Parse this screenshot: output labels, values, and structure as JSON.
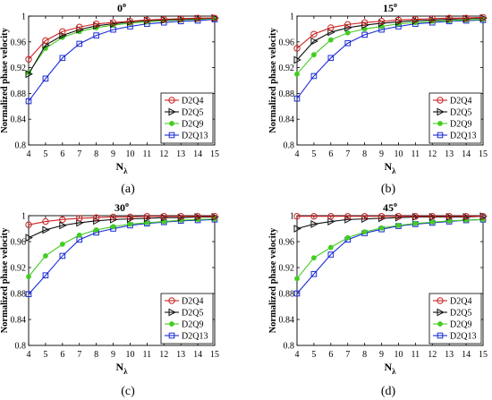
{
  "chart_data": [
    {
      "type": "line",
      "title": "0",
      "title_sup": "o",
      "panel_label": "(a)",
      "xlabel": "N",
      "xlabel_sub": "λ",
      "ylabel": "Normalized phase velocity",
      "xlim": [
        4,
        15
      ],
      "ylim": [
        0.8,
        1
      ],
      "x": [
        4,
        5,
        6,
        7,
        8,
        9,
        10,
        11,
        12,
        13,
        14,
        15
      ],
      "xticks": [
        "4",
        "5",
        "6",
        "7",
        "8",
        "9",
        "10",
        "11",
        "12",
        "13",
        "14",
        "15"
      ],
      "yticks": [
        "0.8",
        "0.84",
        "0.88",
        "0.92",
        "0.96",
        "1"
      ],
      "legend_position": "bottom-right",
      "grid": false,
      "series": [
        {
          "name": "D2Q4",
          "color": "#cc2222",
          "marker": "circle",
          "values": [
            0.933,
            0.962,
            0.976,
            0.983,
            0.988,
            0.99,
            0.992,
            0.994,
            0.995,
            0.996,
            0.997,
            0.997
          ]
        },
        {
          "name": "D2Q5",
          "color": "#111111",
          "marker": "triangle-right",
          "values": [
            0.91,
            0.955,
            0.97,
            0.979,
            0.985,
            0.988,
            0.991,
            0.993,
            0.994,
            0.995,
            0.996,
            0.997
          ]
        },
        {
          "name": "D2Q9",
          "color": "#44cc22",
          "marker": "asterisk",
          "values": [
            0.912,
            0.95,
            0.967,
            0.976,
            0.982,
            0.986,
            0.989,
            0.991,
            0.993,
            0.994,
            0.995,
            0.996
          ]
        },
        {
          "name": "D2Q13",
          "color": "#1a2bd6",
          "marker": "square",
          "values": [
            0.868,
            0.903,
            0.935,
            0.957,
            0.97,
            0.979,
            0.984,
            0.988,
            0.99,
            0.992,
            0.993,
            0.995
          ]
        }
      ]
    },
    {
      "type": "line",
      "title": "15",
      "title_sup": "o",
      "panel_label": "(b)",
      "xlabel": "N",
      "xlabel_sub": "λ",
      "ylabel": "Normalized phase velocity",
      "xlim": [
        4,
        15
      ],
      "ylim": [
        0.8,
        1
      ],
      "x": [
        4,
        5,
        6,
        7,
        8,
        9,
        10,
        11,
        12,
        13,
        14,
        15
      ],
      "xticks": [
        "4",
        "5",
        "6",
        "7",
        "8",
        "9",
        "10",
        "11",
        "12",
        "13",
        "14",
        "15"
      ],
      "yticks": [
        "0.8",
        "0.84",
        "0.88",
        "0.92",
        "0.96",
        "1"
      ],
      "legend_position": "bottom-right",
      "grid": false,
      "series": [
        {
          "name": "D2Q4",
          "color": "#cc2222",
          "marker": "circle",
          "values": [
            0.95,
            0.972,
            0.982,
            0.987,
            0.99,
            0.992,
            0.994,
            0.995,
            0.996,
            0.997,
            0.997,
            0.998
          ]
        },
        {
          "name": "D2Q5",
          "color": "#111111",
          "marker": "triangle-right",
          "values": [
            0.932,
            0.961,
            0.975,
            0.982,
            0.986,
            0.989,
            0.991,
            0.993,
            0.994,
            0.995,
            0.996,
            0.997
          ]
        },
        {
          "name": "D2Q9",
          "color": "#44cc22",
          "marker": "asterisk",
          "values": [
            0.91,
            0.94,
            0.963,
            0.974,
            0.98,
            0.984,
            0.988,
            0.99,
            0.992,
            0.993,
            0.994,
            0.995
          ]
        },
        {
          "name": "D2Q13",
          "color": "#1a2bd6",
          "marker": "square",
          "values": [
            0.872,
            0.907,
            0.935,
            0.958,
            0.971,
            0.979,
            0.984,
            0.988,
            0.99,
            0.992,
            0.993,
            0.994
          ]
        }
      ]
    },
    {
      "type": "line",
      "title": "30",
      "title_sup": "o",
      "panel_label": "(c)",
      "xlabel": "N",
      "xlabel_sub": "λ",
      "ylabel": "Normalized phase velocity",
      "xlim": [
        4,
        15
      ],
      "ylim": [
        0.8,
        1
      ],
      "x": [
        4,
        5,
        6,
        7,
        8,
        9,
        10,
        11,
        12,
        13,
        14,
        15
      ],
      "xticks": [
        "4",
        "5",
        "6",
        "7",
        "8",
        "9",
        "10",
        "11",
        "12",
        "13",
        "14",
        "15"
      ],
      "yticks": [
        "0.8",
        "0.84",
        "0.88",
        "0.92",
        "0.96",
        "1"
      ],
      "legend_position": "bottom-right",
      "grid": false,
      "series": [
        {
          "name": "D2Q4",
          "color": "#cc2222",
          "marker": "circle",
          "values": [
            0.986,
            0.991,
            0.994,
            0.996,
            0.997,
            0.998,
            0.998,
            0.999,
            0.999,
            0.999,
            0.999,
            0.999
          ]
        },
        {
          "name": "D2Q5",
          "color": "#111111",
          "marker": "triangle-right",
          "values": [
            0.966,
            0.978,
            0.985,
            0.989,
            0.992,
            0.994,
            0.995,
            0.996,
            0.997,
            0.997,
            0.998,
            0.998
          ]
        },
        {
          "name": "D2Q9",
          "color": "#44cc22",
          "marker": "asterisk",
          "values": [
            0.906,
            0.938,
            0.956,
            0.97,
            0.978,
            0.983,
            0.987,
            0.989,
            0.991,
            0.993,
            0.994,
            0.995
          ]
        },
        {
          "name": "D2Q13",
          "color": "#1a2bd6",
          "marker": "square",
          "values": [
            0.879,
            0.908,
            0.938,
            0.963,
            0.974,
            0.98,
            0.985,
            0.988,
            0.99,
            0.992,
            0.993,
            0.994
          ]
        }
      ]
    },
    {
      "type": "line",
      "title": "45",
      "title_sup": "o",
      "panel_label": "(d)",
      "xlabel": "N",
      "xlabel_sub": "λ",
      "ylabel": "Normalized phase velocity",
      "xlim": [
        4,
        15
      ],
      "ylim": [
        0.8,
        1
      ],
      "x": [
        4,
        5,
        6,
        7,
        8,
        9,
        10,
        11,
        12,
        13,
        14,
        15
      ],
      "xticks": [
        "4",
        "5",
        "6",
        "7",
        "8",
        "9",
        "10",
        "11",
        "12",
        "13",
        "14",
        "15"
      ],
      "yticks": [
        "0.8",
        "0.84",
        "0.88",
        "0.92",
        "0.96",
        "1"
      ],
      "legend_position": "bottom-right",
      "grid": false,
      "series": [
        {
          "name": "D2Q4",
          "color": "#cc2222",
          "marker": "circle",
          "values": [
            0.999,
            0.999,
            0.999,
            0.999,
            0.999,
            0.999,
            0.999,
            0.999,
            0.999,
            0.999,
            0.999,
            0.999
          ]
        },
        {
          "name": "D2Q5",
          "color": "#111111",
          "marker": "triangle-right",
          "values": [
            0.98,
            0.987,
            0.991,
            0.994,
            0.995,
            0.996,
            0.997,
            0.998,
            0.998,
            0.998,
            0.998,
            0.999
          ]
        },
        {
          "name": "D2Q9",
          "color": "#44cc22",
          "marker": "asterisk",
          "values": [
            0.903,
            0.935,
            0.951,
            0.966,
            0.975,
            0.981,
            0.985,
            0.988,
            0.99,
            0.992,
            0.993,
            0.994
          ]
        },
        {
          "name": "D2Q13",
          "color": "#1a2bd6",
          "marker": "square",
          "values": [
            0.88,
            0.91,
            0.94,
            0.963,
            0.973,
            0.979,
            0.984,
            0.987,
            0.989,
            0.991,
            0.993,
            0.994
          ]
        }
      ]
    }
  ]
}
